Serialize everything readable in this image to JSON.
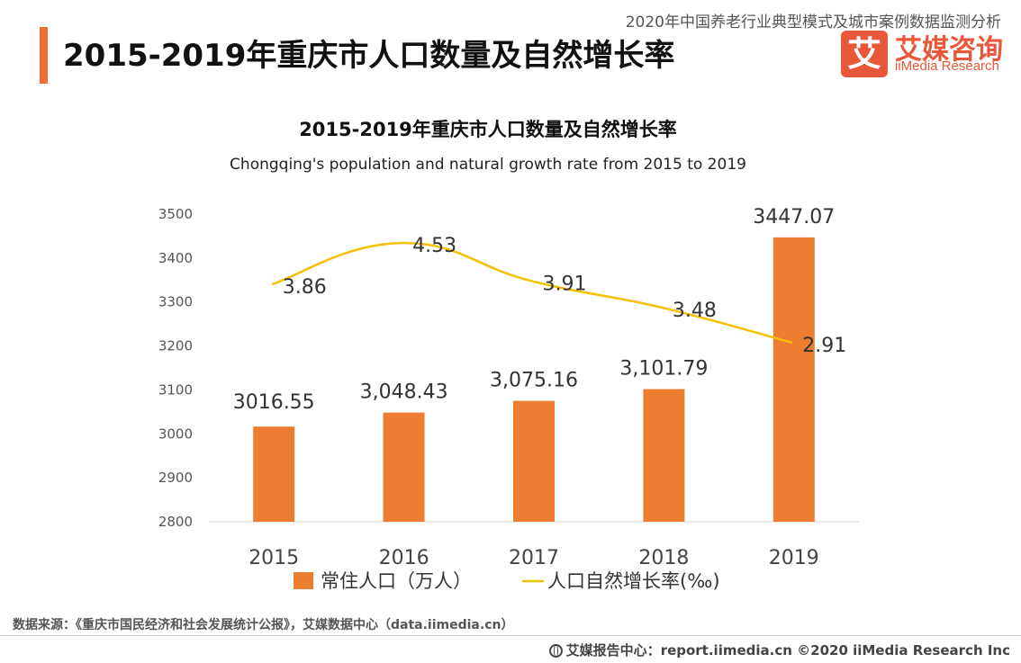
{
  "header": {
    "title": "2015-2019年重庆市人口数量及自然增长率",
    "report_name": "2020年中国养老行业典型模式及城市案例数据监测分析",
    "logo_mark": "艾",
    "logo_cn": "艾媒咨询",
    "logo_en": "iiMedia Research"
  },
  "colors": {
    "accent": "#ef6c35",
    "bar": "#ed7d31",
    "line": "#f5c000",
    "brand": "#e8573a"
  },
  "chart_data": {
    "type": "bar",
    "title": "2015-2019年重庆市人口数量及自然增长率",
    "subtitle": "Chongqing's population and natural growth rate from 2015 to 2019",
    "categories": [
      "2015",
      "2016",
      "2017",
      "2018",
      "2019"
    ],
    "ylim": [
      2800,
      3500
    ],
    "yticks": [
      "2800",
      "2900",
      "3000",
      "3100",
      "3200",
      "3300",
      "3400",
      "3500"
    ],
    "series": [
      {
        "name": "常住人口（万人）",
        "type": "bar",
        "values": [
          3016.55,
          3048.43,
          3075.16,
          3101.79,
          3447.07
        ],
        "labels": [
          "3016.55",
          "3,048.43",
          "3,075.16",
          "3,101.79",
          "3447.07"
        ]
      },
      {
        "name": "人口自然增长率(‰)",
        "type": "line",
        "values": [
          3.86,
          4.53,
          3.91,
          3.48,
          2.91
        ],
        "labels": [
          "3.86",
          "4.53",
          "3.91",
          "3.48",
          "2.91"
        ],
        "secondary_ylim": [
          0,
          5
        ]
      }
    ],
    "legend_position": "bottom"
  },
  "footer": {
    "source": "数据来源：《重庆市国民经济和社会发展统计公报》，艾媒数据中心（data.iimedia.cn）",
    "copyright": "艾媒报告中心：report.iimedia.cn  ©2020  iiMedia Research  Inc"
  }
}
